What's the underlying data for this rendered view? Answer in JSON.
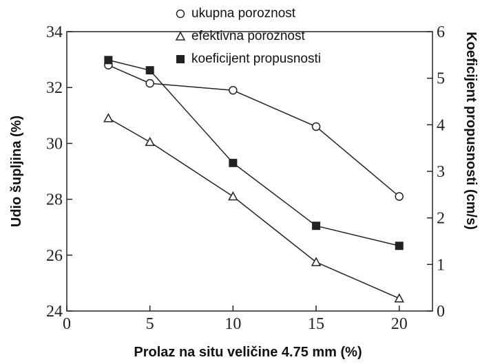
{
  "chart_data": {
    "type": "line",
    "x_label": "Prolaz na situ veličine 4.75 mm (%)",
    "y_label": "Udio šupljina (%)",
    "y2_label": "Koeficijent propusnosti (cm/s)",
    "x": [
      2.5,
      5,
      10,
      15,
      20
    ],
    "series": [
      {
        "name": "ukupna poroznost",
        "color": "#222222",
        "marker": "circle",
        "values": [
          32.8,
          32.15,
          31.9,
          30.6,
          28.1
        ]
      },
      {
        "name": "efektivna poroznost",
        "color": "#222222",
        "marker": "triangle",
        "values": [
          30.9,
          30.05,
          28.1,
          25.75,
          24.45
        ]
      },
      {
        "name": "koeficijent propusnosti",
        "color": "#222222",
        "marker": "square",
        "axis": "y2",
        "values": [
          5.39,
          5.17,
          3.18,
          1.83,
          1.4
        ]
      }
    ],
    "xlim": [
      0,
      22
    ],
    "xticks": [
      0,
      5,
      10,
      15,
      20
    ],
    "ylim": [
      24,
      34
    ],
    "yticks": [
      24,
      26,
      28,
      30,
      32,
      34
    ],
    "y2lim": [
      0,
      6
    ],
    "y2ticks": [
      0,
      1,
      2,
      3,
      4,
      5,
      6
    ]
  }
}
